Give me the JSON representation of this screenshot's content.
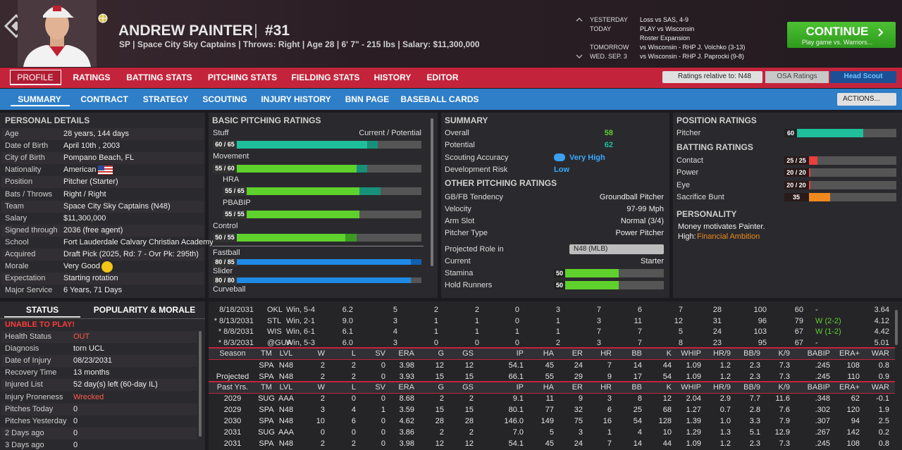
{
  "header": {
    "name": "ANDREW PAINTER",
    "number": "#31",
    "info": "SP | Space City Sky Captains | Throws: Right | Age 28 | 6' 7\" - 215 lbs | Salary: $11,300,000"
  },
  "schedule": [
    {
      "day": "YESTERDAY",
      "events": [
        "Loss vs SAS, 4-9"
      ]
    },
    {
      "day": "TODAY",
      "events": [
        "PLAY vs Wisconsin",
        "Roster Expansion"
      ]
    },
    {
      "day": "TOMORROW",
      "events": [
        "vs Wisconsin - RHP J. Volchko (3-13)"
      ]
    },
    {
      "day": "WED. SEP. 3",
      "events": [
        "vs Wisconsin - RHP J. Paprocki (9-8)"
      ]
    }
  ],
  "continue_button": {
    "label": "CONTINUE",
    "sublabel": "Play game vs. Warriors..."
  },
  "main_tabs": [
    "PROFILE",
    "RATINGS",
    "BATTING STATS",
    "PITCHING STATS",
    "FIELDING STATS",
    "HISTORY",
    "EDITOR"
  ],
  "ratings_relative": "Ratings relative to: N48",
  "rating_sources": [
    "OSA Ratings",
    "Head Scout"
  ],
  "sub_tabs": [
    "SUMMARY",
    "CONTRACT",
    "STRATEGY",
    "SCOUTING",
    "INJURY HISTORY",
    "BNN PAGE",
    "BASEBALL CARDS"
  ],
  "actions": "ACTIONS...",
  "personal_details": {
    "title": "PERSONAL DETAILS",
    "rows": [
      [
        "Age",
        "28 years, 144 days"
      ],
      [
        "Date of Birth",
        "April 10th , 2003"
      ],
      [
        "City of Birth",
        "Pompano Beach, FL"
      ],
      [
        "Nationality",
        "American"
      ],
      [
        "Position",
        "Pitcher (Starter)"
      ],
      [
        "Bats / Throws",
        "Right / Right"
      ],
      [
        "Team",
        "Space City Sky Captains (N48)"
      ],
      [
        "Salary",
        "$11,300,000"
      ],
      [
        "Signed through",
        "2036 (free agent)"
      ],
      [
        "School",
        "Fort Lauderdale Calvary Christian Academy"
      ],
      [
        "Acquired",
        "Draft Pick (2025, Rd: 7 - Ovr Pk: 295th)"
      ],
      [
        "Morale",
        "Very Good"
      ],
      [
        "Expectation",
        "Starting rotation"
      ],
      [
        "Major Service",
        "6 Years, 71 Days"
      ]
    ]
  },
  "basic_pitching": {
    "title": "BASIC PITCHING RATINGS",
    "legend": "Current / Potential",
    "ratings": [
      {
        "name": "Stuff",
        "label": "60 / 65",
        "current": 60,
        "potential": 65,
        "color": "#1fbf9c",
        "potential_color": "#17917a"
      },
      {
        "name": "Movement",
        "label": "55 / 60",
        "current": 55,
        "potential": 60,
        "color": "#5fd12c",
        "potential_color": "#17917a"
      },
      {
        "name": "HRA",
        "label": "55 / 65",
        "current": 55,
        "potential": 65,
        "color": "#5fd12c",
        "potential_color": "#17917a"
      },
      {
        "name": "PBABIP",
        "label": "55 / 55",
        "current": 55,
        "potential": 55,
        "color": "#5fd12c",
        "potential_color": "#17917a"
      },
      {
        "name": "Control",
        "label": "50 / 55",
        "current": 50,
        "potential": 55,
        "color": "#5fd12c",
        "potential_color": "#3a9a22"
      },
      {
        "name": "Fastball",
        "label": "80 / 85",
        "current": 80,
        "potential": 85,
        "color": "#1e8ae6",
        "potential_color": "#1261ad"
      },
      {
        "name": "Slider",
        "label": "80 / 80",
        "current": 80,
        "potential": 80,
        "color": "#1e8ae6",
        "potential_color": "#1261ad"
      },
      {
        "name": "Curveball"
      }
    ]
  },
  "summary": {
    "title": "SUMMARY",
    "overall_label": "Overall",
    "overall": 58,
    "potential_label": "Potential",
    "potential": 62,
    "scouting_label": "Scouting Accuracy",
    "scouting": "Very High",
    "risk_label": "Development Risk",
    "risk": "Low"
  },
  "other_pitching": {
    "title": "OTHER PITCHING RATINGS",
    "rows": [
      [
        "GB/FB Tendency",
        "Groundball Pitcher"
      ],
      [
        "Velocity",
        "97-99 Mph"
      ],
      [
        "Arm Slot",
        "Normal (3/4)"
      ],
      [
        "Pitcher Type",
        "Power Pitcher"
      ]
    ],
    "role_label": "Projected Role in",
    "role_team": "N48 (MLB)",
    "current_label": "Current",
    "current_role": "Starter",
    "bars": [
      {
        "name": "Stamina",
        "value": 50,
        "color": "#5fd12c"
      },
      {
        "name": "Hold Runners",
        "value": 50,
        "color": "#5fd12c"
      }
    ]
  },
  "position_ratings": {
    "title": "POSITION RATINGS",
    "rows": [
      {
        "name": "Pitcher",
        "value": 60,
        "color": "#1fbf9c"
      }
    ]
  },
  "batting_ratings": {
    "title": "BATTING RATINGS",
    "rows": [
      {
        "name": "Contact",
        "label": "25 / 25",
        "current": 25,
        "potential": 25,
        "color": "#e8403e"
      },
      {
        "name": "Power",
        "label": "20 / 20",
        "current": 20,
        "potential": 20,
        "color": "#e8403e"
      },
      {
        "name": "Eye",
        "label": "20 / 20",
        "current": 20,
        "potential": 20,
        "color": "#e8403e"
      },
      {
        "name": "Sacrifice Bunt",
        "label": "35",
        "current": 35,
        "color": "#f08a1c"
      }
    ]
  },
  "personality": {
    "title": "PERSONALITY",
    "text": "Money motivates Painter.",
    "level": "High:",
    "trait": "Financial Ambition"
  },
  "status_tabs": [
    "STATUS",
    "POPULARITY & MORALE"
  ],
  "status": {
    "alert": "UNABLE TO PLAY!",
    "rows": [
      [
        "Health Status",
        "OUT"
      ],
      [
        "Diagnosis",
        "torn UCL"
      ],
      [
        "Date of Injury",
        "08/23/2031"
      ],
      [
        "Recovery Time",
        "13 months"
      ],
      [
        "Injured List",
        "52 day(s) left (60-day IL)"
      ],
      [
        "Injury Proneness",
        "Wrecked"
      ],
      [
        "Pitches Today",
        "0"
      ],
      [
        "Pitches Yesterday",
        "0"
      ],
      [
        "2 Days ago",
        "0"
      ],
      [
        "3 Days ago",
        "0"
      ]
    ]
  },
  "game_log": [
    [
      "8/18/2031",
      "OKL",
      "Win, 5-4",
      "6.2",
      "5",
      "2",
      "2",
      "0",
      "3",
      "7",
      "6",
      "7",
      "28",
      "100",
      "60",
      "-",
      "3.64"
    ],
    [
      "* 8/13/2031",
      "STL",
      "Win, 2-1",
      "9.0",
      "3",
      "1",
      "1",
      "0",
      "1",
      "3",
      "11",
      "12",
      "31",
      "96",
      "79",
      "W (2-2)",
      "4.12"
    ],
    [
      "* 8/8/2031",
      "WIS",
      "Win, 6-1",
      "6.1",
      "4",
      "1",
      "1",
      "1",
      "1",
      "7",
      "7",
      "5",
      "24",
      "103",
      "67",
      "W (1-2)",
      "4.42"
    ],
    [
      "* 8/3/2031",
      "@GUA",
      "Win, 5-3",
      "6.0",
      "3",
      "0",
      "0",
      "0",
      "2",
      "3",
      "7",
      "8",
      "23",
      "95",
      "67",
      "-",
      "5.01"
    ]
  ],
  "season_stats": {
    "header": [
      "Season",
      "TM",
      "LVL",
      "W",
      "L",
      "SV",
      "ERA",
      "G",
      "GS",
      "IP",
      "HA",
      "ER",
      "HR",
      "BB",
      "K",
      "WHIP",
      "HR/9",
      "BB/9",
      "K/9",
      "BABIP",
      "ERA+",
      "WAR"
    ],
    "rows": [
      [
        "",
        "SPA",
        "N48",
        "2",
        "2",
        "0",
        "3.98",
        "12",
        "12",
        "54.1",
        "45",
        "24",
        "7",
        "14",
        "44",
        "1.09",
        "1.2",
        "2.3",
        "7.3",
        ".245",
        "108",
        "0.8"
      ],
      [
        "Projected",
        "SPA",
        "N48",
        "2",
        "2",
        "0",
        "3.93",
        "15",
        "15",
        "66.1",
        "55",
        "29",
        "9",
        "17",
        "54",
        "1.09",
        "1.2",
        "2.3",
        "7.3",
        ".245",
        "110",
        "0.9"
      ]
    ]
  },
  "past_stats": {
    "header": [
      "Past Yrs.",
      "TM",
      "LVL",
      "W",
      "L",
      "SV",
      "ERA",
      "G",
      "GS",
      "IP",
      "HA",
      "ER",
      "HR",
      "BB",
      "K",
      "WHIP",
      "HR/9",
      "BB/9",
      "K/9",
      "BABIP",
      "ERA+",
      "WAR"
    ],
    "rows": [
      [
        "2029",
        "SUG",
        "AAA",
        "2",
        "0",
        "0",
        "8.68",
        "2",
        "2",
        "9.1",
        "11",
        "9",
        "3",
        "8",
        "12",
        "2.04",
        "2.9",
        "7.7",
        "11.6",
        ".348",
        "62",
        "-0.1"
      ],
      [
        "2029",
        "SPA",
        "N48",
        "3",
        "4",
        "1",
        "3.59",
        "15",
        "15",
        "80.1",
        "77",
        "32",
        "6",
        "25",
        "68",
        "1.27",
        "0.7",
        "2.8",
        "7.6",
        ".302",
        "120",
        "1.9"
      ],
      [
        "2030",
        "SPA",
        "N48",
        "10",
        "6",
        "0",
        "4.62",
        "28",
        "28",
        "146.0",
        "149",
        "75",
        "16",
        "54",
        "128",
        "1.39",
        "1.0",
        "3.3",
        "7.9",
        ".307",
        "94",
        "2.5"
      ],
      [
        "2031",
        "SUG",
        "AAA",
        "0",
        "0",
        "0",
        "3.86",
        "2",
        "2",
        "7.0",
        "5",
        "3",
        "1",
        "4",
        "10",
        "1.29",
        "1.3",
        "5.1",
        "12.9",
        ".267",
        "142",
        "0.2"
      ],
      [
        "2031",
        "SPA",
        "N48",
        "2",
        "2",
        "0",
        "3.98",
        "12",
        "12",
        "54.1",
        "45",
        "24",
        "7",
        "14",
        "44",
        "1.09",
        "1.2",
        "2.3",
        "7.3",
        ".245",
        "108",
        "0.8"
      ]
    ]
  }
}
